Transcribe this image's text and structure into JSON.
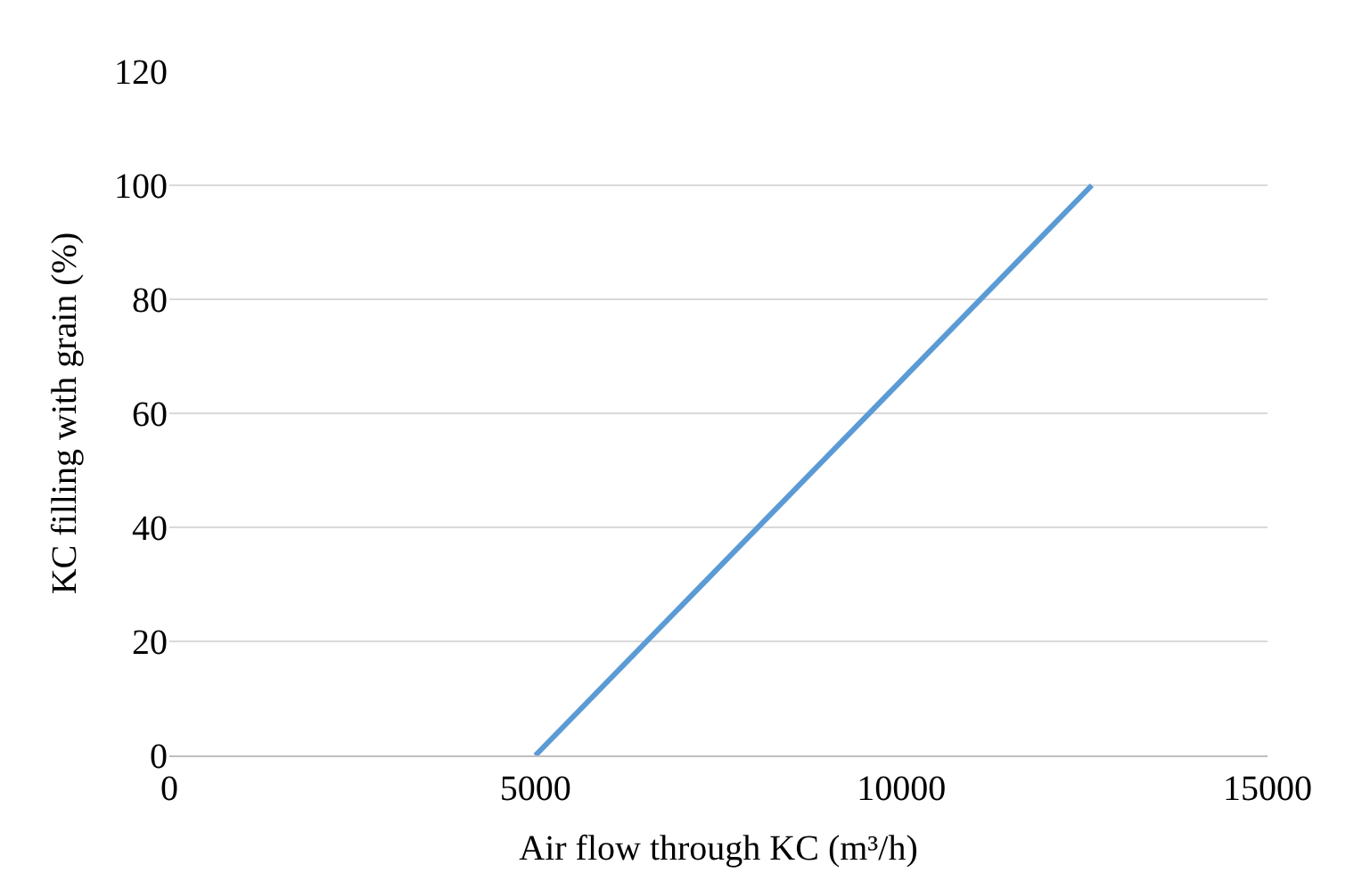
{
  "chart_data": {
    "type": "line",
    "xlabel": "Air flow through KC (m³/h)",
    "ylabel": "KC filling with grain (%)",
    "x": [
      5000,
      12600
    ],
    "series": [
      {
        "color": "#5b9bd5",
        "values": [
          0,
          100
        ]
      }
    ],
    "xlim": [
      0,
      15000
    ],
    "xticks": [
      0,
      5000,
      10000,
      15000
    ],
    "ylim": [
      0,
      120
    ],
    "yticks": [
      0,
      20,
      40,
      60,
      80,
      100,
      120
    ],
    "grid": "y",
    "marker": "none",
    "line_style": "solid"
  }
}
